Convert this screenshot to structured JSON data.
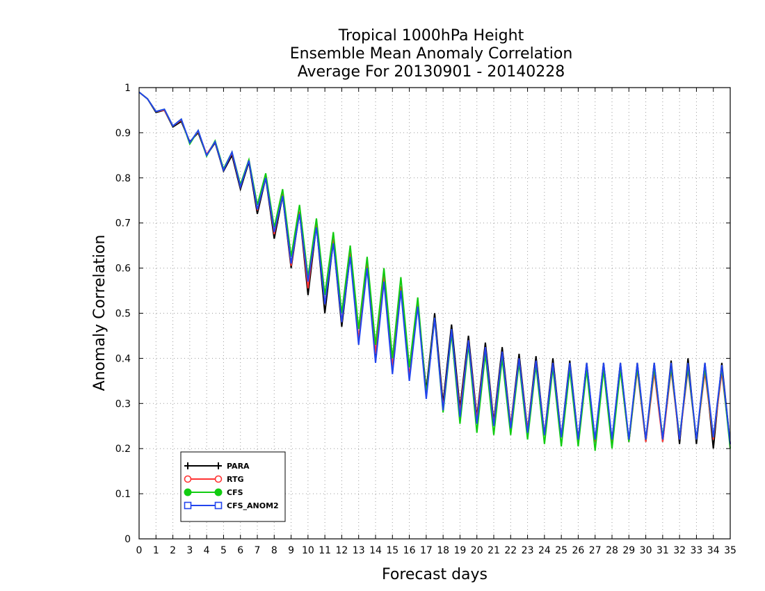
{
  "chart_data": {
    "type": "line",
    "title": [
      "Tropical 1000hPa Height",
      "Ensemble Mean Anomaly Correlation",
      "Average For 20130901 - 20140228"
    ],
    "xlabel": "Forecast days",
    "ylabel": "Anomaly Correlation",
    "xlim": [
      0,
      35
    ],
    "ylim": [
      0,
      1
    ],
    "x_ticks": [
      "0",
      "1",
      "2",
      "3",
      "4",
      "5",
      "6",
      "7",
      "8",
      "9",
      "10",
      "11",
      "12",
      "13",
      "14",
      "15",
      "16",
      "17",
      "18",
      "19",
      "20",
      "21",
      "22",
      "23",
      "24",
      "25",
      "26",
      "27",
      "28",
      "29",
      "30",
      "31",
      "32",
      "33",
      "34",
      "35"
    ],
    "y_ticks": [
      "0",
      "0.1",
      "0.2",
      "0.3",
      "0.4",
      "0.5",
      "0.6",
      "0.7",
      "0.8",
      "0.9",
      "1"
    ],
    "grid": true,
    "legend_position": "bottom-left",
    "x": [
      0,
      0.5,
      1,
      1.5,
      2,
      2.5,
      3,
      3.5,
      4,
      4.5,
      5,
      5.5,
      6,
      6.5,
      7,
      7.5,
      8,
      8.5,
      9,
      9.5,
      10,
      10.5,
      11,
      11.5,
      12,
      12.5,
      13,
      13.5,
      14,
      14.5,
      15,
      15.5,
      16,
      16.5,
      17,
      17.5,
      18,
      18.5,
      19,
      19.5,
      20,
      20.5,
      21,
      21.5,
      22,
      22.5,
      23,
      23.5,
      24,
      24.5,
      25,
      25.5,
      26,
      26.5,
      27,
      27.5,
      28,
      28.5,
      29,
      29.5,
      30,
      30.5,
      31,
      31.5,
      32,
      32.5,
      33,
      33.5,
      34,
      34.5,
      35
    ],
    "series": [
      {
        "name": "PARA",
        "color": "#000000",
        "marker": "plus",
        "values": [
          0.99,
          0.975,
          0.945,
          0.95,
          0.913,
          0.925,
          0.88,
          0.9,
          0.85,
          0.878,
          0.815,
          0.85,
          0.775,
          0.835,
          0.72,
          0.8,
          0.665,
          0.76,
          0.6,
          0.725,
          0.54,
          0.695,
          0.5,
          0.66,
          0.47,
          0.63,
          0.44,
          0.605,
          0.4,
          0.58,
          0.37,
          0.555,
          0.36,
          0.52,
          0.33,
          0.5,
          0.3,
          0.475,
          0.29,
          0.45,
          0.27,
          0.435,
          0.26,
          0.425,
          0.25,
          0.41,
          0.24,
          0.405,
          0.23,
          0.4,
          0.225,
          0.395,
          0.22,
          0.39,
          0.215,
          0.39,
          0.215,
          0.39,
          0.215,
          0.39,
          0.215,
          0.39,
          0.215,
          0.395,
          0.21,
          0.4,
          0.21,
          0.39,
          0.2,
          0.39,
          0.21
        ]
      },
      {
        "name": "RTG",
        "color": "#ff3333",
        "marker": "open-circle",
        "values": [
          0.99,
          0.975,
          0.947,
          0.95,
          0.915,
          0.928,
          0.878,
          0.903,
          0.852,
          0.88,
          0.818,
          0.855,
          0.78,
          0.84,
          0.728,
          0.803,
          0.675,
          0.765,
          0.605,
          0.725,
          0.555,
          0.7,
          0.52,
          0.665,
          0.48,
          0.635,
          0.44,
          0.61,
          0.41,
          0.585,
          0.38,
          0.56,
          0.36,
          0.52,
          0.32,
          0.49,
          0.29,
          0.46,
          0.28,
          0.44,
          0.265,
          0.425,
          0.255,
          0.415,
          0.25,
          0.4,
          0.24,
          0.395,
          0.23,
          0.39,
          0.225,
          0.385,
          0.22,
          0.38,
          0.215,
          0.38,
          0.215,
          0.375,
          0.215,
          0.375,
          0.215,
          0.37,
          0.215,
          0.375,
          0.22,
          0.375,
          0.22,
          0.37,
          0.22,
          0.37,
          0.21
        ]
      },
      {
        "name": "CFS",
        "color": "#11cc11",
        "marker": "filled-circle",
        "values": [
          0.99,
          0.975,
          0.947,
          0.952,
          0.915,
          0.93,
          0.875,
          0.905,
          0.848,
          0.882,
          0.82,
          0.857,
          0.785,
          0.84,
          0.74,
          0.81,
          0.69,
          0.775,
          0.625,
          0.74,
          0.58,
          0.71,
          0.54,
          0.68,
          0.5,
          0.65,
          0.465,
          0.625,
          0.43,
          0.6,
          0.4,
          0.58,
          0.38,
          0.535,
          0.32,
          0.49,
          0.28,
          0.455,
          0.255,
          0.43,
          0.235,
          0.41,
          0.23,
          0.4,
          0.23,
          0.39,
          0.22,
          0.385,
          0.21,
          0.38,
          0.205,
          0.375,
          0.205,
          0.375,
          0.195,
          0.375,
          0.2,
          0.375,
          0.215,
          0.38,
          0.22,
          0.38,
          0.225,
          0.38,
          0.225,
          0.38,
          0.22,
          0.38,
          0.225,
          0.38,
          0.2
        ]
      },
      {
        "name": "CFS_ANOM2",
        "color": "#2244ee",
        "marker": "open-square",
        "values": [
          0.99,
          0.975,
          0.947,
          0.952,
          0.915,
          0.93,
          0.878,
          0.905,
          0.85,
          0.88,
          0.817,
          0.857,
          0.78,
          0.838,
          0.73,
          0.8,
          0.68,
          0.76,
          0.61,
          0.72,
          0.57,
          0.69,
          0.52,
          0.655,
          0.48,
          0.625,
          0.43,
          0.6,
          0.39,
          0.57,
          0.365,
          0.55,
          0.35,
          0.515,
          0.31,
          0.49,
          0.285,
          0.465,
          0.27,
          0.44,
          0.255,
          0.425,
          0.25,
          0.415,
          0.245,
          0.4,
          0.235,
          0.395,
          0.23,
          0.39,
          0.225,
          0.39,
          0.22,
          0.39,
          0.22,
          0.39,
          0.22,
          0.39,
          0.22,
          0.39,
          0.22,
          0.39,
          0.22,
          0.39,
          0.22,
          0.39,
          0.22,
          0.39,
          0.225,
          0.385,
          0.21
        ]
      }
    ]
  }
}
